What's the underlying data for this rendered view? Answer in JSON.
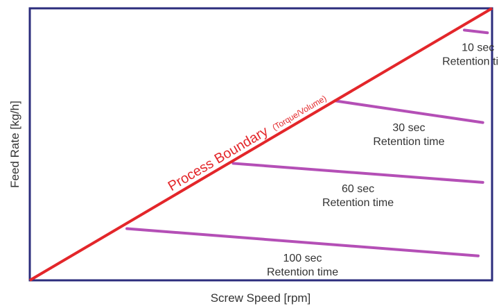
{
  "chart_data": {
    "type": "line",
    "xlabel": "Screw Speed [rpm]",
    "ylabel": "Feed Rate [kg/h]",
    "xlim": [
      0,
      1
    ],
    "ylim": [
      0,
      1
    ],
    "grid": false,
    "boundary": {
      "label": "Process Boundary",
      "sublabel": "(Torque/Volume)",
      "color": "#e3262a",
      "x": [
        0,
        1
      ],
      "y": [
        0,
        1
      ]
    },
    "series": [
      {
        "label": [
          "10 sec",
          "Retention time"
        ],
        "x": [
          0.94,
          0.99
        ],
        "y": [
          0.92,
          0.91
        ]
      },
      {
        "label": [
          "30 sec",
          "Retention time"
        ],
        "x": [
          0.66,
          0.98
        ],
        "y": [
          0.66,
          0.58
        ]
      },
      {
        "label": [
          "60 sec",
          "Retention time"
        ],
        "x": [
          0.44,
          0.98
        ],
        "y": [
          0.43,
          0.36
        ]
      },
      {
        "label": [
          "100 sec",
          "Retention time"
        ],
        "x": [
          0.21,
          0.97
        ],
        "y": [
          0.19,
          0.09
        ]
      }
    ],
    "series_color": "#b44fb6",
    "frame_color": "#2b2c7c"
  }
}
